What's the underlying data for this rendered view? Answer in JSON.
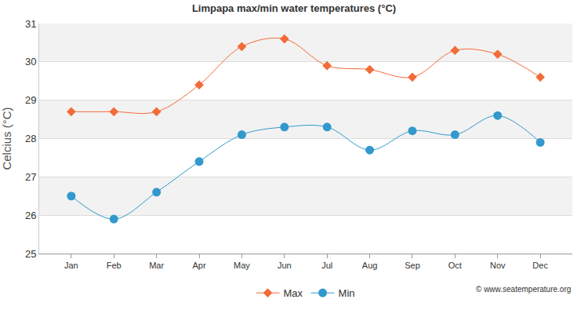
{
  "chart_data": {
    "type": "line",
    "title": "Limpapa max/min water temperatures (°C)",
    "y_label": "Celcius (°C)",
    "annotations": [
      "© www.seatemperature.org"
    ],
    "categories": [
      "Jan",
      "Feb",
      "Mar",
      "Apr",
      "May",
      "Jun",
      "Jul",
      "Aug",
      "Sep",
      "Oct",
      "Nov",
      "Dec"
    ],
    "series": [
      {
        "name": "Max",
        "color": "#f26b38",
        "marker": "diamond",
        "line_style": "solid",
        "values": [
          28.7,
          28.7,
          28.7,
          29.4,
          30.4,
          30.6,
          29.9,
          29.8,
          29.6,
          30.3,
          30.2,
          29.6
        ]
      },
      {
        "name": "Min",
        "color": "#3399cc",
        "marker": "circle",
        "line_style": "solid",
        "values": [
          26.5,
          25.9,
          26.6,
          27.4,
          28.1,
          28.3,
          28.3,
          27.7,
          28.2,
          28.1,
          28.6,
          27.9
        ]
      }
    ],
    "ylim": [
      25,
      31
    ],
    "yticks": [
      25,
      26,
      27,
      28,
      29,
      30,
      31
    ],
    "grid": true,
    "legend": "bottom"
  }
}
